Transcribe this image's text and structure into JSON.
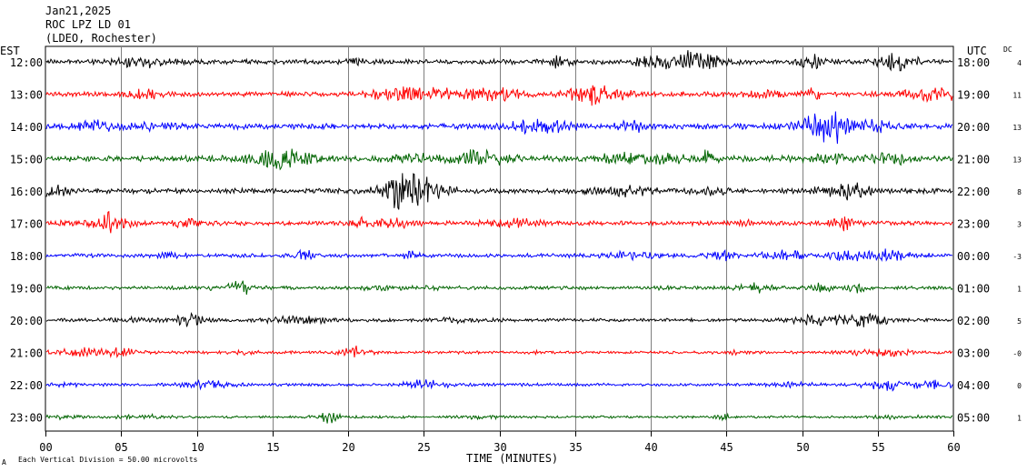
{
  "header": {
    "date": "Jan21,2025",
    "station": "ROC LPZ LD 01",
    "network": "(LDEO, Rochester)"
  },
  "labels": {
    "left_zone": "EST",
    "right_zone": "UTC",
    "dc_header": "DC",
    "xlabel": "TIME (MINUTES)",
    "scale_note": "Each Vertical Division =   50.00 microvolts",
    "corner_mark": "A"
  },
  "chart_data": {
    "type": "line",
    "title": "",
    "xlabel": "TIME (MINUTES)",
    "ylabel": "",
    "xlim": [
      0,
      60
    ],
    "x_ticks": [
      "00",
      "05",
      "10",
      "15",
      "20",
      "25",
      "30",
      "35",
      "40",
      "45",
      "50",
      "55",
      "60"
    ],
    "grid": true,
    "trace_colors": [
      "#000000",
      "#ff0000",
      "#0000ff",
      "#006400"
    ],
    "rows": [
      {
        "est": "12:00",
        "utc": "18:00",
        "dc": "4",
        "color": "#000000",
        "amplitude": 1.0
      },
      {
        "est": "13:00",
        "utc": "19:00",
        "dc": "11",
        "color": "#ff0000",
        "amplitude": 1.0
      },
      {
        "est": "14:00",
        "utc": "20:00",
        "dc": "13",
        "color": "#0000ff",
        "amplitude": 1.1
      },
      {
        "est": "15:00",
        "utc": "21:00",
        "dc": "13",
        "color": "#006400",
        "amplitude": 1.2
      },
      {
        "est": "16:00",
        "utc": "22:00",
        "dc": "8",
        "color": "#000000",
        "amplitude": 1.0
      },
      {
        "est": "17:00",
        "utc": "23:00",
        "dc": "3",
        "color": "#ff0000",
        "amplitude": 0.9
      },
      {
        "est": "18:00",
        "utc": "00:00",
        "dc": "-3",
        "color": "#0000ff",
        "amplitude": 0.8
      },
      {
        "est": "19:00",
        "utc": "01:00",
        "dc": "1",
        "color": "#006400",
        "amplitude": 0.7
      },
      {
        "est": "20:00",
        "utc": "02:00",
        "dc": "5",
        "color": "#000000",
        "amplitude": 0.7
      },
      {
        "est": "21:00",
        "utc": "03:00",
        "dc": "-0",
        "color": "#ff0000",
        "amplitude": 0.6
      },
      {
        "est": "22:00",
        "utc": "04:00",
        "dc": "0",
        "color": "#0000ff",
        "amplitude": 0.6
      },
      {
        "est": "23:00",
        "utc": "05:00",
        "dc": "1",
        "color": "#006400",
        "amplitude": 0.5
      }
    ]
  }
}
